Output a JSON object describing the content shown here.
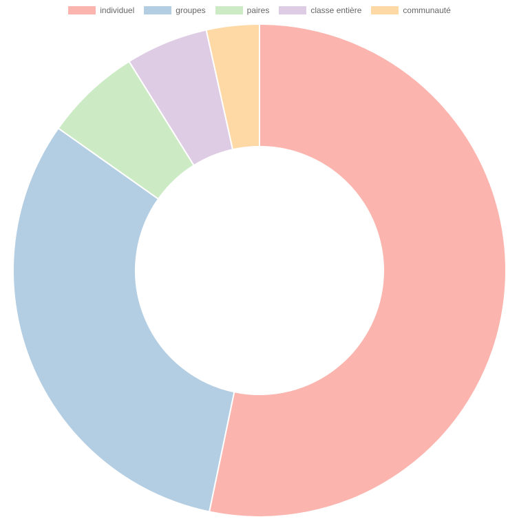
{
  "chart_data": {
    "type": "doughnut",
    "legend_position": "top",
    "categories": [
      "individuel",
      "groupes",
      "paires",
      "classe entière",
      "communauté"
    ],
    "values": [
      52.2,
      30.9,
      6.2,
      5.3,
      3.4
    ],
    "colors": [
      "#fbb4ae",
      "#b3cde3",
      "#ccebc5",
      "#decbe4",
      "#fed9a6"
    ]
  }
}
